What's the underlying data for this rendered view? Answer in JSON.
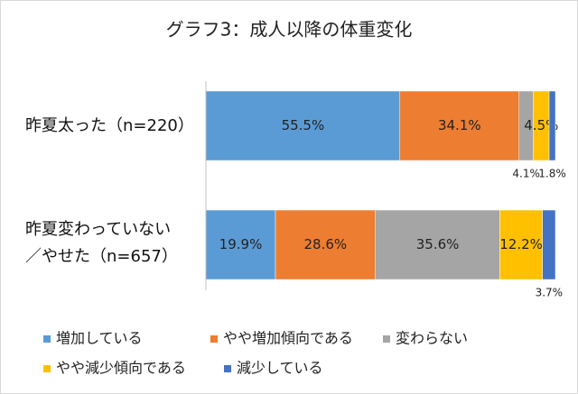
{
  "chart_data": {
    "type": "bar",
    "orientation": "horizontal",
    "stacked": true,
    "title": "グラフ3：成人以降の体重変化",
    "categories": [
      "昨夏太った（n=220）",
      "昨夏変わっていない／やせた（n=657）"
    ],
    "xlim": [
      0,
      100
    ],
    "series": [
      {
        "name": "増加している",
        "color": "#5b9bd5",
        "values": [
          55.5,
          19.9
        ],
        "value_labels": [
          "55.5%",
          "19.9%"
        ]
      },
      {
        "name": "やや増加傾向である",
        "color": "#ed7d31",
        "values": [
          34.1,
          28.6
        ],
        "value_labels": [
          "34.1%",
          "28.6%"
        ]
      },
      {
        "name": "変わらない",
        "color": "#a5a5a5",
        "values": [
          4.1,
          35.6
        ],
        "value_labels": [
          "4.1%",
          "35.6%"
        ]
      },
      {
        "name": "やや減少傾向である",
        "color": "#ffc000",
        "values": [
          4.5,
          12.2
        ],
        "value_labels": [
          "4.5%",
          "12.2%"
        ]
      },
      {
        "name": "減少している",
        "color": "#4472c4",
        "values": [
          1.8,
          3.7
        ],
        "value_labels": [
          "1.8%",
          "3.7%"
        ]
      }
    ]
  }
}
